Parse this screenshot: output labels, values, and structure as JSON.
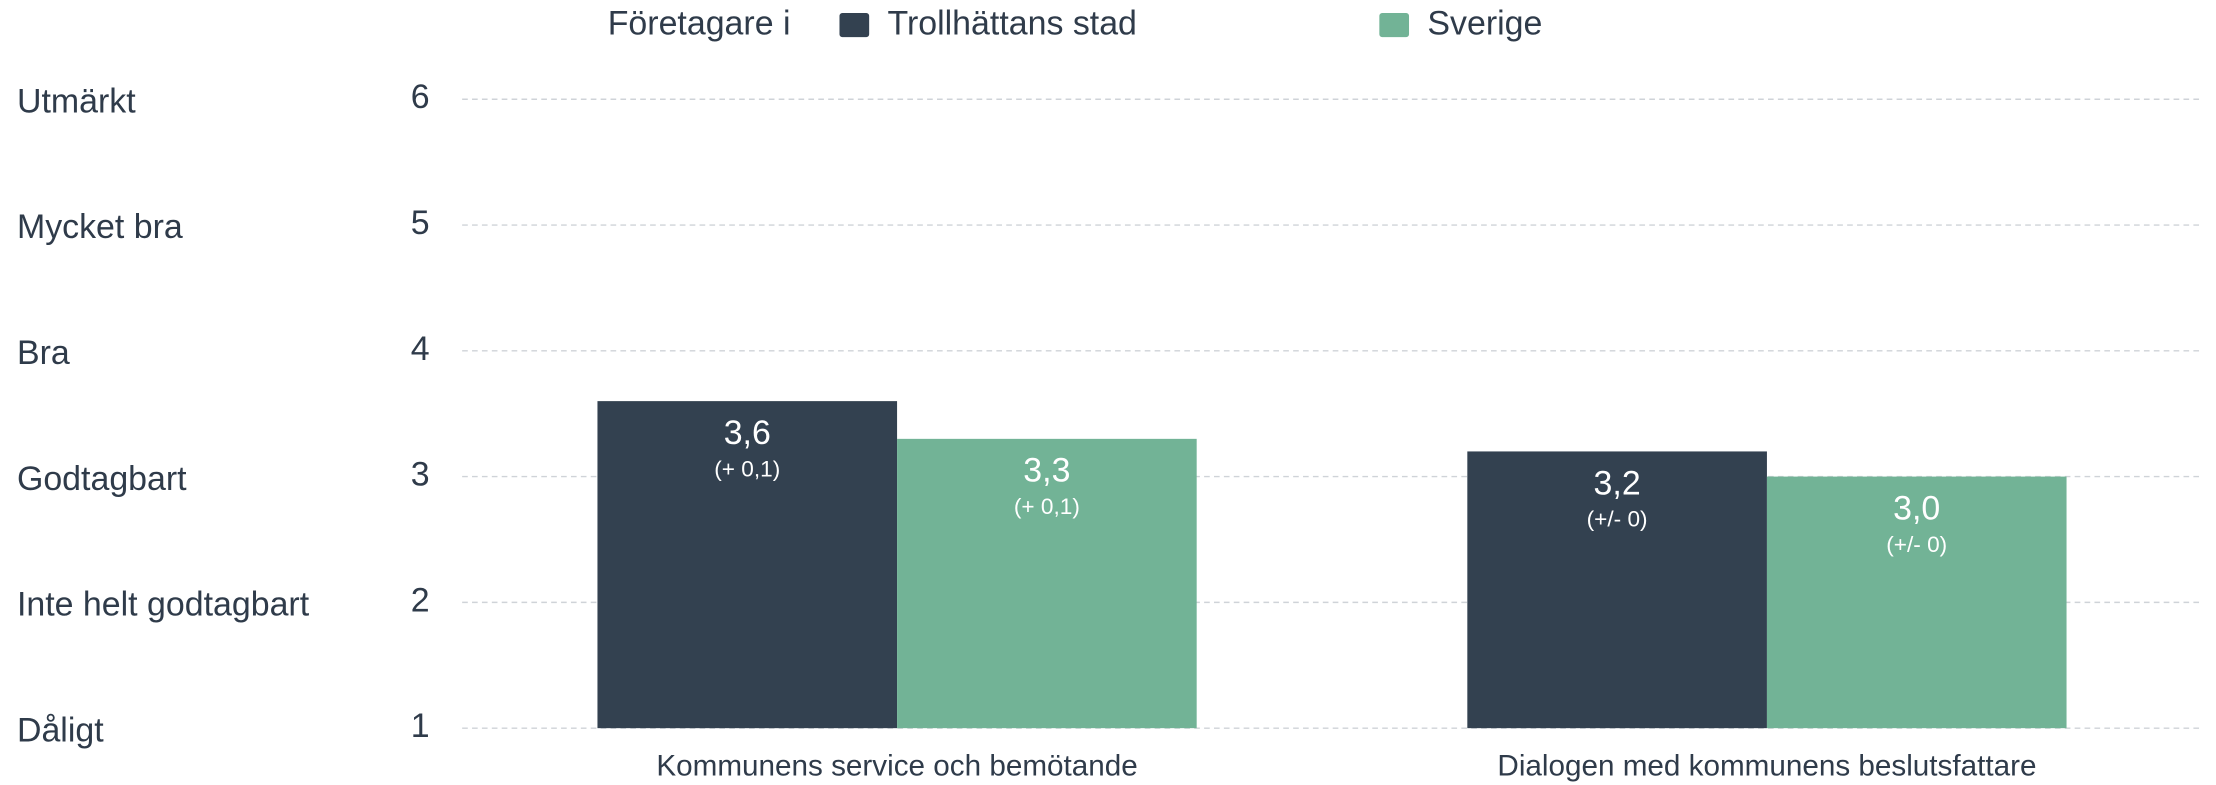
{
  "chart_data": {
    "type": "bar",
    "legend_title": "Företagare i",
    "categories": [
      "Kommunens service och bemötande",
      "Dialogen med kommunens beslutsfattare"
    ],
    "series": [
      {
        "name": "Trollhättans stad",
        "color": "#334150",
        "values": [
          3.6,
          3.2
        ],
        "value_labels": [
          "3,6",
          "3,2"
        ],
        "change_labels": [
          "(+ 0,1)",
          "(+/- 0)"
        ]
      },
      {
        "name": "Sverige",
        "color": "#72b396",
        "values": [
          3.3,
          3.0
        ],
        "value_labels": [
          "3,3",
          "3,0"
        ],
        "change_labels": [
          "(+ 0,1)",
          "(+/- 0)"
        ]
      }
    ],
    "ylim": [
      1,
      6
    ],
    "yticks": [
      1,
      2,
      3,
      4,
      5,
      6
    ],
    "ytick_names": [
      "Dåligt",
      "Inte helt godtagbart",
      "Godtagbart",
      "Bra",
      "Mycket bra",
      "Utmärkt"
    ],
    "grid": true,
    "legend": "top"
  }
}
